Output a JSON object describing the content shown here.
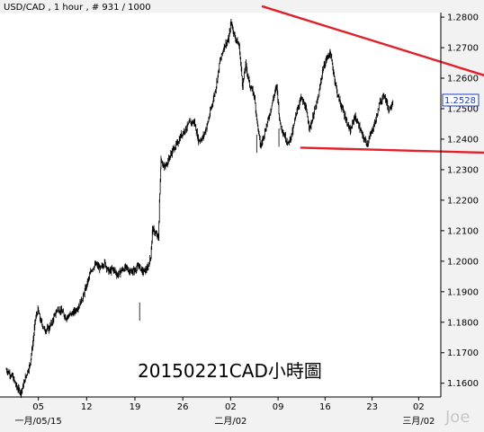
{
  "header": {
    "symbol": "USD/CAD",
    "timeframe": "1 hour",
    "counter": "# 931 / 1000"
  },
  "caption": "20150221CAD小時圖",
  "watermark": "Joe",
  "current_price_label": "1.2528",
  "colors": {
    "background": "#f2f2f2",
    "plot_background": "#ffffff",
    "bars": "#000000",
    "trendline": "#e0202a",
    "price_tag": "#1f3fbf"
  },
  "chart_data": {
    "type": "ohlc",
    "title": "USD/CAD , 1 hour , # 931 / 1000",
    "xlabel": "",
    "ylabel": "",
    "ylim": [
      1.1555,
      1.2815
    ],
    "xlim": [
      0,
      100
    ],
    "grid": false,
    "x_day_ticks": [
      {
        "label": "05",
        "x": 7.5
      },
      {
        "label": "12",
        "x": 18.8
      },
      {
        "label": "19",
        "x": 30.1
      },
      {
        "label": "26",
        "x": 41.3
      },
      {
        "label": "02",
        "x": 52.5
      },
      {
        "label": "09",
        "x": 63.6
      },
      {
        "label": "16",
        "x": 74.6
      },
      {
        "label": "23",
        "x": 85.6
      },
      {
        "label": "02",
        "x": 96.5
      }
    ],
    "x_month_labels": [
      {
        "label": "一月/05/15",
        "x": 7.5
      },
      {
        "label": "二月/02",
        "x": 52.5
      },
      {
        "label": "三月/02",
        "x": 96.5
      }
    ],
    "y_ticks": [
      1.16,
      1.17,
      1.18,
      1.19,
      1.2,
      1.21,
      1.22,
      1.23,
      1.24,
      1.25,
      1.26,
      1.27,
      1.28
    ],
    "y_tick_labels": [
      "1.1600",
      "1.1700",
      "1.1800",
      "1.1900",
      "1.2000",
      "1.2100",
      "1.2200",
      "1.2300",
      "1.2400",
      "1.2500",
      "1.2600",
      "1.2700",
      "1.2800"
    ],
    "price_path": [
      {
        "x": 0.0,
        "y": 1.1645
      },
      {
        "x": 1.5,
        "y": 1.162
      },
      {
        "x": 2.5,
        "y": 1.1585
      },
      {
        "x": 3.5,
        "y": 1.157
      },
      {
        "x": 4.5,
        "y": 1.162
      },
      {
        "x": 5.5,
        "y": 1.166
      },
      {
        "x": 6.2,
        "y": 1.173
      },
      {
        "x": 6.8,
        "y": 1.181
      },
      {
        "x": 7.4,
        "y": 1.184
      },
      {
        "x": 8.0,
        "y": 1.1805
      },
      {
        "x": 9.0,
        "y": 1.1775
      },
      {
        "x": 10.0,
        "y": 1.178
      },
      {
        "x": 11.0,
        "y": 1.181
      },
      {
        "x": 12.0,
        "y": 1.1845
      },
      {
        "x": 13.0,
        "y": 1.1835
      },
      {
        "x": 14.0,
        "y": 1.1815
      },
      {
        "x": 15.0,
        "y": 1.1825
      },
      {
        "x": 16.0,
        "y": 1.1835
      },
      {
        "x": 17.0,
        "y": 1.1855
      },
      {
        "x": 18.0,
        "y": 1.1885
      },
      {
        "x": 19.0,
        "y": 1.193
      },
      {
        "x": 20.0,
        "y": 1.1975
      },
      {
        "x": 21.0,
        "y": 1.199
      },
      {
        "x": 22.0,
        "y": 1.1975
      },
      {
        "x": 23.0,
        "y": 1.1995
      },
      {
        "x": 24.0,
        "y": 1.1965
      },
      {
        "x": 25.0,
        "y": 1.1975
      },
      {
        "x": 26.0,
        "y": 1.1955
      },
      {
        "x": 27.0,
        "y": 1.197
      },
      {
        "x": 28.0,
        "y": 1.198
      },
      {
        "x": 29.0,
        "y": 1.1965
      },
      {
        "x": 30.0,
        "y": 1.197
      },
      {
        "x": 31.0,
        "y": 1.1985
      },
      {
        "x": 32.0,
        "y": 1.1965
      },
      {
        "x": 33.0,
        "y": 1.1975
      },
      {
        "x": 33.8,
        "y": 1.2015
      },
      {
        "x": 34.2,
        "y": 1.2105
      },
      {
        "x": 35.0,
        "y": 1.209
      },
      {
        "x": 35.6,
        "y": 1.2075
      },
      {
        "x": 35.9,
        "y": 1.222
      },
      {
        "x": 36.2,
        "y": 1.2335
      },
      {
        "x": 37.0,
        "y": 1.2305
      },
      {
        "x": 38.0,
        "y": 1.2335
      },
      {
        "x": 39.0,
        "y": 1.2365
      },
      {
        "x": 40.0,
        "y": 1.2385
      },
      {
        "x": 41.0,
        "y": 1.2415
      },
      {
        "x": 42.0,
        "y": 1.2435
      },
      {
        "x": 43.0,
        "y": 1.2455
      },
      {
        "x": 44.0,
        "y": 1.2455
      },
      {
        "x": 45.0,
        "y": 1.2395
      },
      {
        "x": 46.0,
        "y": 1.2405
      },
      {
        "x": 47.0,
        "y": 1.2445
      },
      {
        "x": 48.0,
        "y": 1.2505
      },
      {
        "x": 49.0,
        "y": 1.2565
      },
      {
        "x": 50.0,
        "y": 1.2655
      },
      {
        "x": 51.0,
        "y": 1.2705
      },
      {
        "x": 52.0,
        "y": 1.2725
      },
      {
        "x": 52.6,
        "y": 1.2785
      },
      {
        "x": 53.5,
        "y": 1.2735
      },
      {
        "x": 54.5,
        "y": 1.2705
      },
      {
        "x": 55.3,
        "y": 1.2575
      },
      {
        "x": 56.0,
        "y": 1.2645
      },
      {
        "x": 57.0,
        "y": 1.2575
      },
      {
        "x": 58.0,
        "y": 1.2545
      },
      {
        "x": 58.8,
        "y": 1.2445
      },
      {
        "x": 59.5,
        "y": 1.2375
      },
      {
        "x": 60.5,
        "y": 1.2425
      },
      {
        "x": 61.5,
        "y": 1.2475
      },
      {
        "x": 62.5,
        "y": 1.2535
      },
      {
        "x": 63.3,
        "y": 1.2575
      },
      {
        "x": 64.0,
        "y": 1.2455
      },
      {
        "x": 65.0,
        "y": 1.2415
      },
      {
        "x": 66.0,
        "y": 1.2385
      },
      {
        "x": 67.0,
        "y": 1.2425
      },
      {
        "x": 68.0,
        "y": 1.2495
      },
      {
        "x": 69.0,
        "y": 1.2535
      },
      {
        "x": 70.0,
        "y": 1.2505
      },
      {
        "x": 71.0,
        "y": 1.2435
      },
      {
        "x": 72.0,
        "y": 1.2485
      },
      {
        "x": 73.0,
        "y": 1.2535
      },
      {
        "x": 74.0,
        "y": 1.2625
      },
      {
        "x": 75.0,
        "y": 1.2665
      },
      {
        "x": 75.8,
        "y": 1.2685
      },
      {
        "x": 76.5,
        "y": 1.2625
      },
      {
        "x": 77.5,
        "y": 1.2545
      },
      {
        "x": 78.5,
        "y": 1.2505
      },
      {
        "x": 79.5,
        "y": 1.2465
      },
      {
        "x": 80.5,
        "y": 1.2425
      },
      {
        "x": 81.5,
        "y": 1.2475
      },
      {
        "x": 82.5,
        "y": 1.2445
      },
      {
        "x": 83.5,
        "y": 1.2405
      },
      {
        "x": 84.5,
        "y": 1.2385
      },
      {
        "x": 85.5,
        "y": 1.2425
      },
      {
        "x": 86.5,
        "y": 1.2465
      },
      {
        "x": 87.5,
        "y": 1.2525
      },
      {
        "x": 88.5,
        "y": 1.2545
      },
      {
        "x": 89.5,
        "y": 1.2495
      },
      {
        "x": 90.5,
        "y": 1.2525
      }
    ],
    "trendlines": [
      {
        "name": "upper",
        "x": [
          60.0,
          122.0
        ],
        "y": [
          1.2835,
          1.2565
        ]
      },
      {
        "name": "lower",
        "x": [
          69.0,
          122.0
        ],
        "y": [
          1.2372,
          1.2352
        ]
      }
    ],
    "last_price": 1.2528
  }
}
